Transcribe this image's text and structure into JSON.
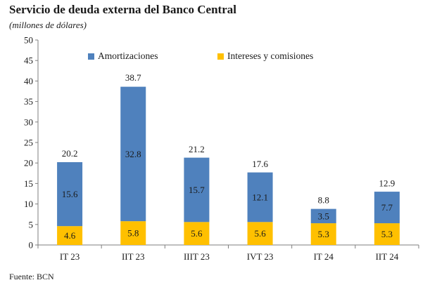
{
  "title": "Servicio de deuda externa del Banco Central",
  "subtitle": "(millones de dólares)",
  "source": "Fuente: BCN",
  "chart_data": {
    "type": "bar",
    "stacked": true,
    "categories": [
      "IT 23",
      "IIT 23",
      "IIIT 23",
      "IVT 23",
      "IT 24",
      "IIT 24"
    ],
    "series": [
      {
        "name": "Intereses y comisiones",
        "color": "#ffc000",
        "values": [
          4.6,
          5.8,
          5.6,
          5.6,
          5.3,
          5.3
        ]
      },
      {
        "name": "Amortizaciones",
        "color": "#4f81bd",
        "values": [
          15.6,
          32.8,
          15.7,
          12.1,
          3.5,
          7.7
        ]
      }
    ],
    "totals": [
      20.2,
      38.7,
      21.2,
      17.6,
      8.8,
      12.9
    ],
    "ylim": [
      0,
      50
    ],
    "yticks": [
      0,
      5,
      10,
      15,
      20,
      25,
      30,
      35,
      40,
      45,
      50
    ],
    "grid": false,
    "legend_position": "top"
  }
}
